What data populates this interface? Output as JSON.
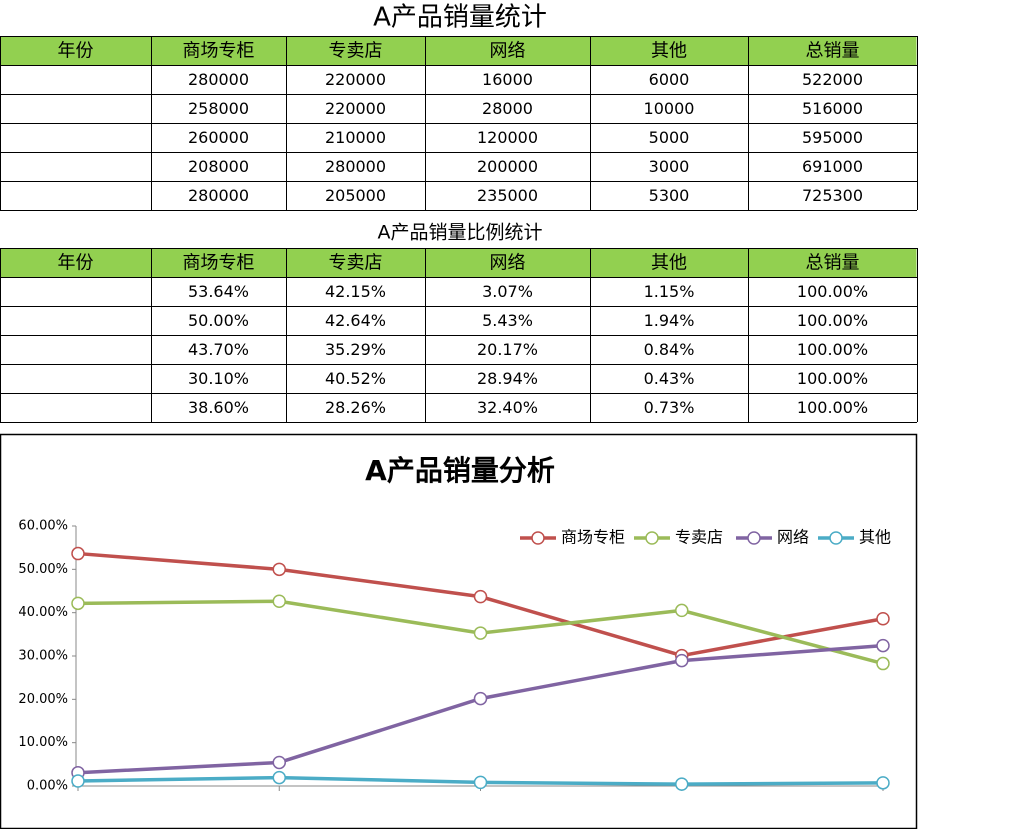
{
  "table1": {
    "title": "A产品销量统计",
    "headers": [
      "年份",
      "商场专柜",
      "专卖店",
      "网络",
      "其他",
      "总销量"
    ],
    "rows": [
      [
        280000,
        220000,
        16000,
        6000,
        522000
      ],
      [
        258000,
        220000,
        28000,
        10000,
        516000
      ],
      [
        260000,
        210000,
        120000,
        5000,
        595000
      ],
      [
        208000,
        280000,
        200000,
        3000,
        691000
      ],
      [
        280000,
        205000,
        235000,
        5300,
        725300
      ]
    ]
  },
  "table2": {
    "title": "A产品销量比例统计",
    "headers": [
      "年份",
      "商场专柜",
      "专卖店",
      "网络",
      "其他",
      "总销量"
    ],
    "rows": [
      [
        "53.64%",
        "42.15%",
        "3.07%",
        "1.15%",
        "100.00%"
      ],
      [
        "50.00%",
        "42.64%",
        "5.43%",
        "1.94%",
        "100.00%"
      ],
      [
        "43.70%",
        "35.29%",
        "20.17%",
        "0.84%",
        "100.00%"
      ],
      [
        "30.10%",
        "40.52%",
        "28.94%",
        "0.43%",
        "100.00%"
      ],
      [
        "38.60%",
        "28.26%",
        "32.40%",
        "0.73%",
        "100.00%"
      ]
    ]
  },
  "chart_data": {
    "type": "line",
    "title": "A产品销量分析",
    "categories": [
      null,
      null,
      null,
      null,
      null
    ],
    "series": [
      {
        "name": "商场专柜",
        "color": "#c0504d",
        "values": [
          53.64,
          50.0,
          43.7,
          30.1,
          38.6
        ]
      },
      {
        "name": "专卖店",
        "color": "#9bbb59",
        "values": [
          42.15,
          42.64,
          35.29,
          40.52,
          28.26
        ]
      },
      {
        "name": "网络",
        "color": "#8064a2",
        "values": [
          3.07,
          5.43,
          20.17,
          28.94,
          32.4
        ]
      },
      {
        "name": "其他",
        "color": "#4bacc6",
        "values": [
          1.15,
          1.94,
          0.84,
          0.43,
          0.73
        ]
      }
    ],
    "ylim": [
      0,
      60
    ],
    "yticks": [
      {
        "value": 0,
        "label": "0.00%"
      },
      {
        "value": 10,
        "label": "10.00%"
      },
      {
        "value": 20,
        "label": "20.00%"
      },
      {
        "value": 30,
        "label": "30.00%"
      },
      {
        "value": 40,
        "label": "40.00%"
      },
      {
        "value": 50,
        "label": "50.00%"
      },
      {
        "value": 60,
        "label": "60.00%"
      }
    ],
    "legend": "top-right"
  }
}
